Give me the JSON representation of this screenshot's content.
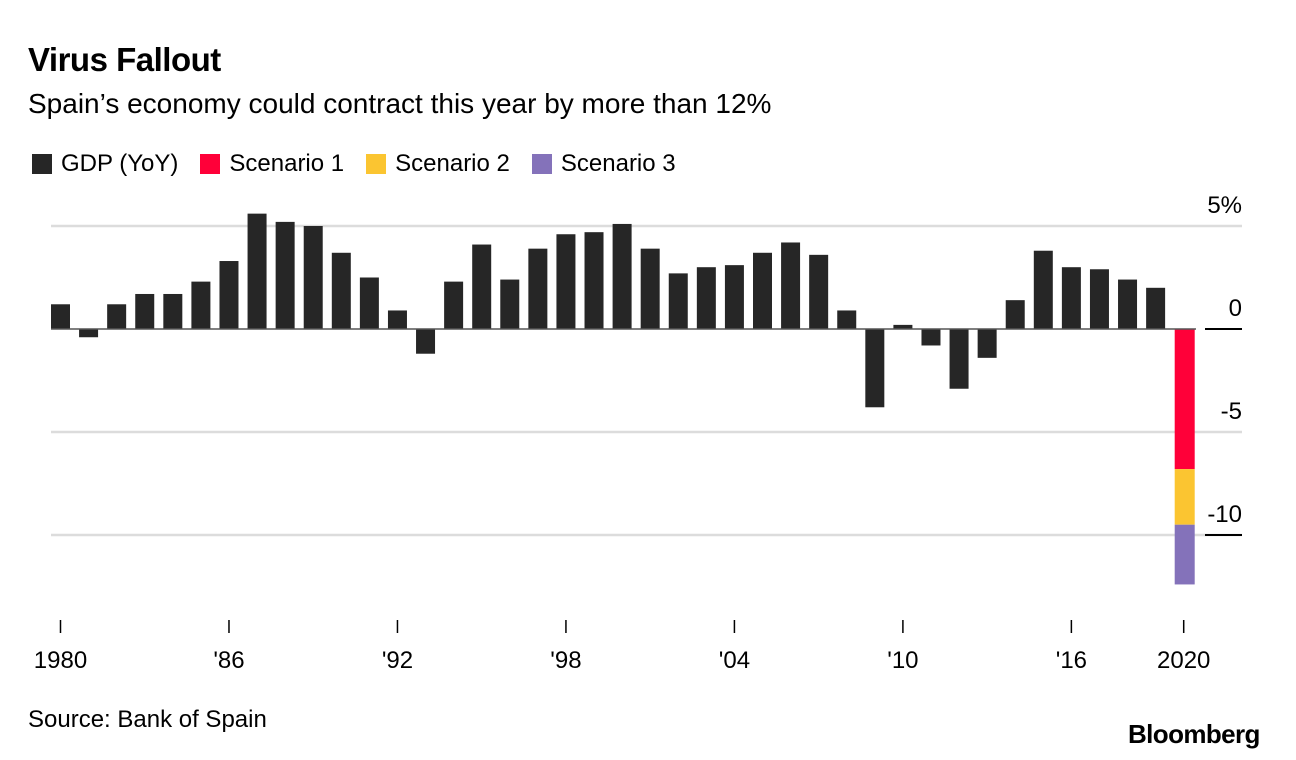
{
  "chart_data": {
    "type": "bar",
    "title": "Virus Fallout",
    "subtitle": "Spain’s economy could contract this year by more than 12%",
    "xlabel": "",
    "ylabel": "",
    "ylim": [
      -13,
      6
    ],
    "y_ticks": [
      {
        "value": 5,
        "label": "5%"
      },
      {
        "value": 0,
        "label": "0"
      },
      {
        "value": -5,
        "label": "-5"
      },
      {
        "value": -10,
        "label": "-10"
      }
    ],
    "y_axis_side": "right",
    "grid": true,
    "legend_position": "top-left",
    "legend": [
      {
        "name": "GDP (YoY)",
        "color": "#262626"
      },
      {
        "name": "Scenario 1",
        "color": "#ff0039"
      },
      {
        "name": "Scenario 2",
        "color": "#fbc531"
      },
      {
        "name": "Scenario 3",
        "color": "#8472ba"
      }
    ],
    "x_ticks": [
      {
        "year": 1980,
        "label": "1980"
      },
      {
        "year": 1986,
        "label": "'86"
      },
      {
        "year": 1992,
        "label": "'92"
      },
      {
        "year": 1998,
        "label": "'98"
      },
      {
        "year": 2004,
        "label": "'04"
      },
      {
        "year": 2010,
        "label": "'10"
      },
      {
        "year": 2016,
        "label": "'16"
      },
      {
        "year": 2020,
        "label": "2020"
      }
    ],
    "series": [
      {
        "name": "GDP (YoY)",
        "color": "#262626",
        "x": [
          1980,
          1981,
          1982,
          1983,
          1984,
          1985,
          1986,
          1987,
          1988,
          1989,
          1990,
          1991,
          1992,
          1993,
          1994,
          1995,
          1996,
          1997,
          1998,
          1999,
          2000,
          2001,
          2002,
          2003,
          2004,
          2005,
          2006,
          2007,
          2008,
          2009,
          2010,
          2011,
          2012,
          2013,
          2014,
          2015,
          2016,
          2017,
          2018,
          2019
        ],
        "values": [
          1.2,
          -0.4,
          1.2,
          1.7,
          1.7,
          2.3,
          3.3,
          5.6,
          5.2,
          5.0,
          3.7,
          2.5,
          0.9,
          -1.2,
          2.3,
          4.1,
          2.4,
          3.9,
          4.6,
          4.7,
          5.1,
          3.9,
          2.7,
          3.0,
          3.1,
          3.7,
          4.2,
          3.6,
          0.9,
          -3.8,
          0.2,
          -0.8,
          -2.9,
          -1.4,
          1.4,
          3.8,
          3.0,
          2.9,
          2.4,
          2.0
        ]
      },
      {
        "name": "Scenario 1",
        "color": "#ff0039",
        "x": [
          2020
        ],
        "values": [
          -6.8
        ]
      },
      {
        "name": "Scenario 2",
        "color": "#fbc531",
        "x": [
          2020
        ],
        "values": [
          -9.5
        ]
      },
      {
        "name": "Scenario 3",
        "color": "#8472ba",
        "x": [
          2020
        ],
        "values": [
          -12.4
        ]
      }
    ],
    "source": "Source: Bank of Spain"
  },
  "branding": {
    "logo_text": "Bloomberg"
  }
}
